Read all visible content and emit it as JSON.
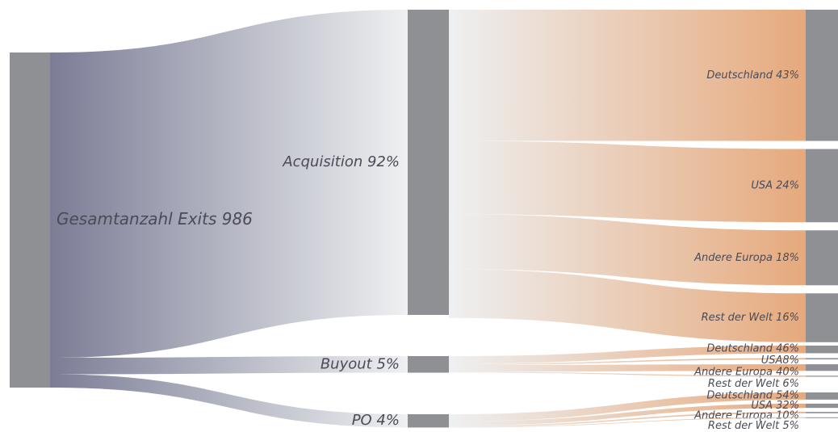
{
  "chart_data": {
    "type": "sankey",
    "root": {
      "label": "Gesamtanzahl Exits 986",
      "value": 986
    },
    "groups": [
      {
        "label": "Acquisition 92%",
        "value": 92,
        "children": [
          {
            "label": "Deutschland 43%",
            "value": 43
          },
          {
            "label": "USA 24%",
            "value": 24
          },
          {
            "label": "Andere Europa 18%",
            "value": 18
          },
          {
            "label": "Rest der Welt 16%",
            "value": 16
          }
        ]
      },
      {
        "label": "Buyout 5%",
        "value": 5,
        "children": [
          {
            "label": "Deutschland 46%",
            "value": 46
          },
          {
            "label": "USA8%",
            "value": 8
          },
          {
            "label": "Andere Europa 40%",
            "value": 40
          },
          {
            "label": "Rest der Welt 6%",
            "value": 6
          }
        ]
      },
      {
        "label": "PO 4%",
        "value": 4,
        "children": [
          {
            "label": "Deutschland 54%",
            "value": 54
          },
          {
            "label": "USA 32%",
            "value": 32
          },
          {
            "label": "Andere Europa 10%",
            "value": 10
          },
          {
            "label": "Rest der Welt 5%",
            "value": 5
          }
        ]
      }
    ],
    "node_color": "#8f9093",
    "flow_color_1": "#7c7d96",
    "flow_color_2": "#e6a97c"
  }
}
